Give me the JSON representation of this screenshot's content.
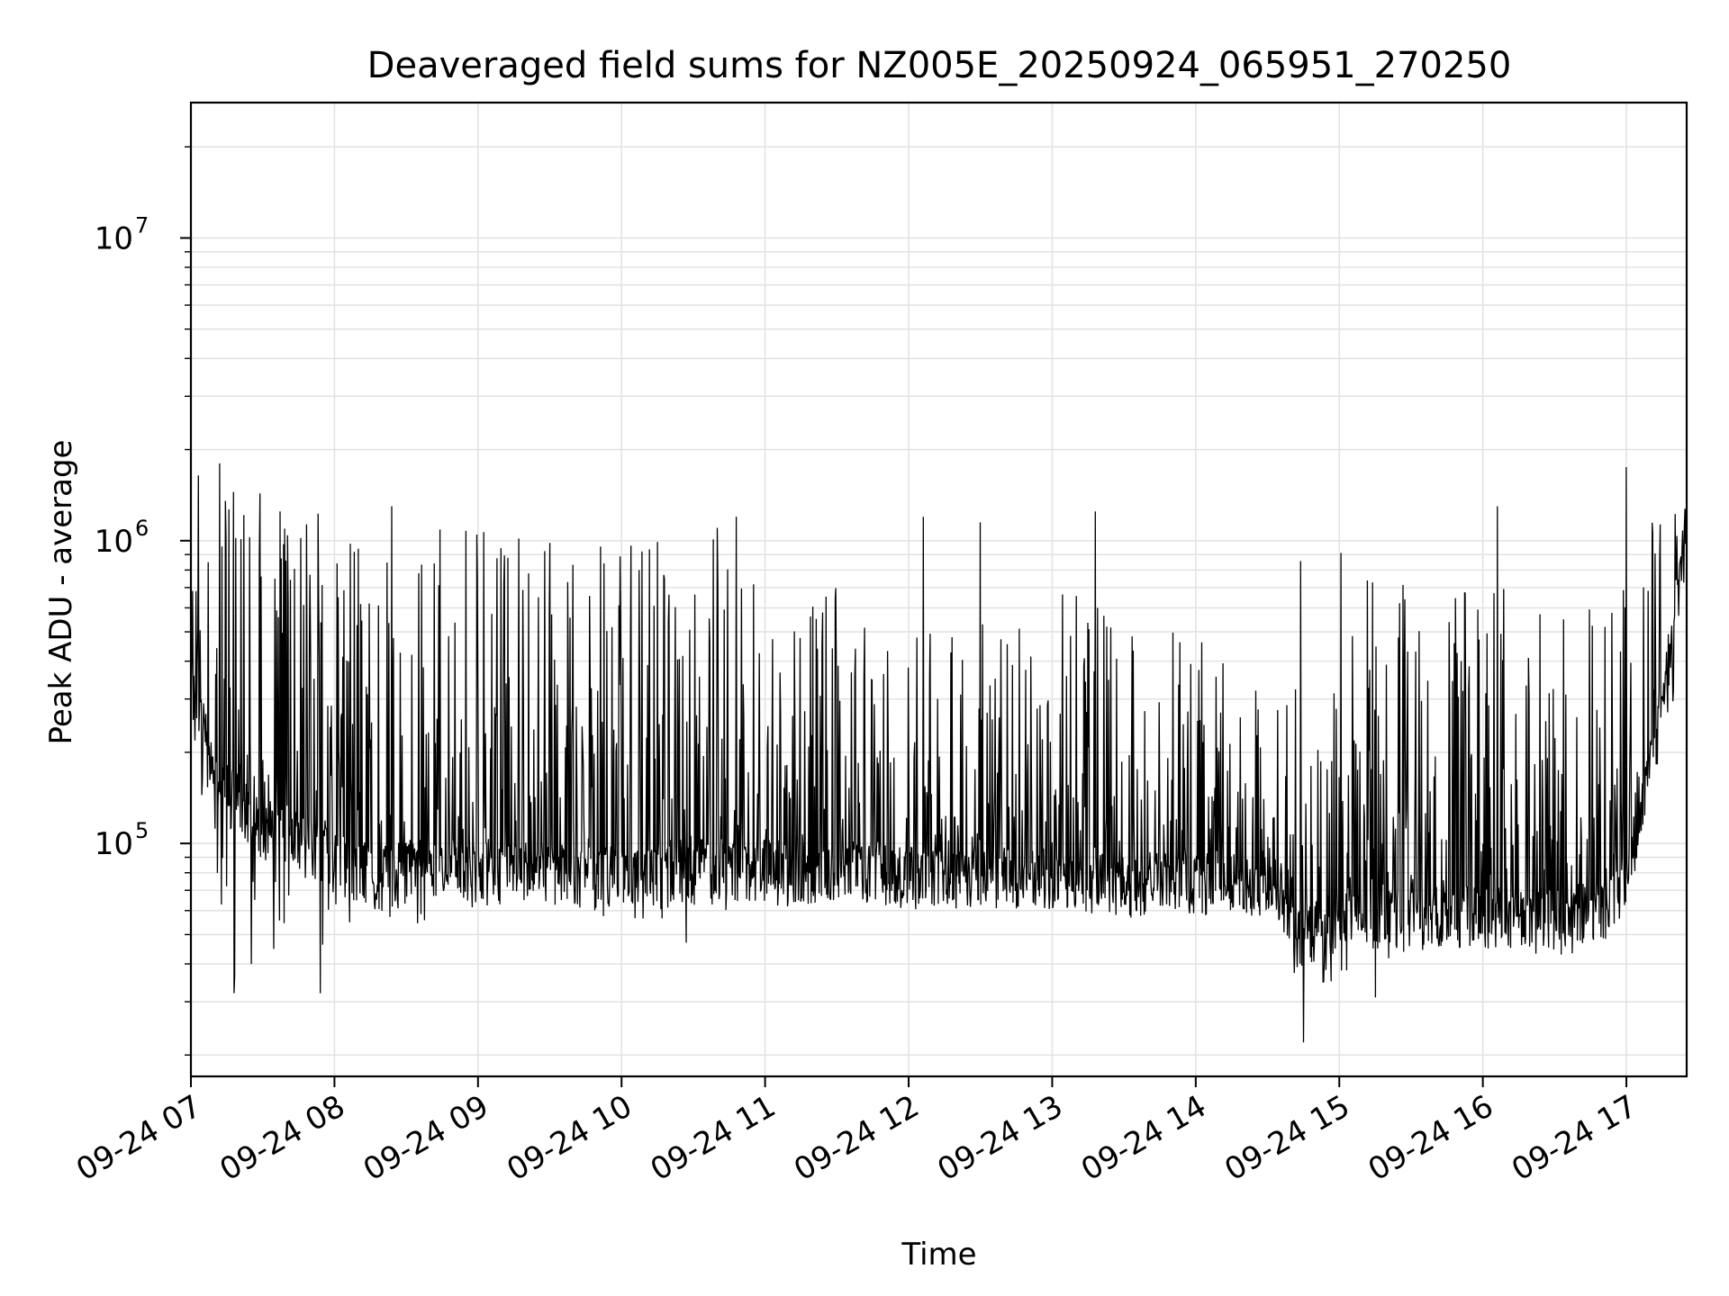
{
  "chart_data": {
    "type": "line",
    "title": "Deaveraged field sums for NZ005E_20250924_065951_270250",
    "xlabel": "Time",
    "ylabel": "Peak ADU - average",
    "yscale": "log",
    "xlim_hours": [
      7.0,
      17.42
    ],
    "ylim": [
      17000,
      28000000
    ],
    "grid": true,
    "line_color": "#000000",
    "x_tick_labels": [
      "09-24 07",
      "09-24 08",
      "09-24 09",
      "09-24 10",
      "09-24 11",
      "09-24 12",
      "09-24 13",
      "09-24 14",
      "09-24 15",
      "09-24 16",
      "09-24 17"
    ],
    "x_tick_hours": [
      7,
      8,
      9,
      10,
      11,
      12,
      13,
      14,
      15,
      16,
      17
    ],
    "y_ticks": [
      {
        "value": 100000,
        "base": "10",
        "exp": "5"
      },
      {
        "value": 1000000,
        "base": "10",
        "exp": "6"
      },
      {
        "value": 10000000,
        "base": "10",
        "exp": "7"
      }
    ],
    "series": [
      {
        "name": "Peak ADU - average",
        "envelope": {
          "hours": [
            7.0,
            7.2,
            7.5,
            7.8,
            8.0,
            8.3,
            8.6,
            9.0,
            9.5,
            10.0,
            10.5,
            10.8,
            11.0,
            11.5,
            12.0,
            12.5,
            13.0,
            13.5,
            13.9,
            14.0,
            14.4,
            14.55,
            14.7,
            15.0,
            15.5,
            16.0,
            16.5,
            16.9,
            17.0,
            17.2,
            17.42
          ],
          "baseline": [
            300000,
            150000,
            110000,
            100000,
            85000,
            75000,
            80000,
            80000,
            78000,
            75000,
            82000,
            80000,
            80000,
            78000,
            78000,
            76000,
            74000,
            70000,
            75000,
            73000,
            70000,
            70000,
            46000,
            55000,
            55000,
            56000,
            55000,
            60000,
            75000,
            200000,
            1000000
          ],
          "spike_max": [
            1900000,
            1600000,
            1500000,
            1400000,
            1300000,
            800000,
            1100000,
            1100000,
            1100000,
            1000000,
            1000000,
            1200000,
            600000,
            700000,
            600000,
            600000,
            700000,
            600000,
            500000,
            500000,
            400000,
            300000,
            1000000,
            1000000,
            700000,
            700000,
            700000,
            600000,
            800000,
            1300000,
            1500000
          ],
          "dip_min": [
            300000,
            35000,
            35000,
            35000,
            50000,
            45000,
            55000,
            60000,
            60000,
            55000,
            55000,
            60000,
            60000,
            65000,
            60000,
            60000,
            60000,
            58000,
            58000,
            58000,
            60000,
            60000,
            25000,
            35000,
            45000,
            45000,
            42000,
            45000,
            60000,
            100000,
            500000
          ]
        },
        "annotations_max": [
          {
            "hour": 7.2,
            "value": 1800000
          },
          {
            "hour": 7.9,
            "value": 1600000
          },
          {
            "hour": 8.4,
            "value": 1300000
          },
          {
            "hour": 10.8,
            "value": 1200000
          },
          {
            "hour": 12.1,
            "value": 1200000
          },
          {
            "hour": 12.5,
            "value": 1150000
          },
          {
            "hour": 13.3,
            "value": 1250000
          },
          {
            "hour": 16.1,
            "value": 1300000
          },
          {
            "hour": 17.0,
            "value": 1750000
          }
        ],
        "annotations_min": [
          {
            "hour": 7.3,
            "value": 32000
          },
          {
            "hour": 7.9,
            "value": 32000
          },
          {
            "hour": 14.75,
            "value": 22000
          },
          {
            "hour": 15.25,
            "value": 31000
          },
          {
            "hour": 10.45,
            "value": 47000
          }
        ]
      }
    ]
  }
}
